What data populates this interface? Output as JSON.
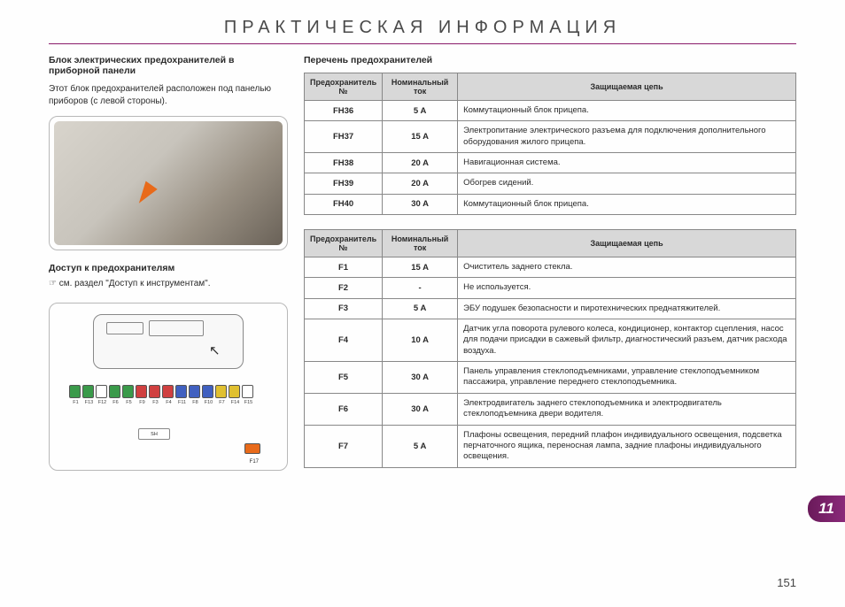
{
  "page_title": "ПРАКТИЧЕСКАЯ ИНФОРМАЦИЯ",
  "left": {
    "heading": "Блок электрических предохранителей в приборной панели",
    "body": "Этот блок предохранителей расположен под панелью приборов (с левой стороны).",
    "access_heading": "Доступ к предохранителям",
    "access_ref": "☞  см. раздел \"Доступ к инструментам\".",
    "fuse_labels": [
      "F1",
      "F13",
      "F12",
      "F6",
      "F5",
      "F9",
      "F3",
      "F4",
      "F11",
      "F8",
      "F10",
      "F7",
      "F14",
      "F15"
    ],
    "fuse_colors": [
      "#3a9a4a",
      "#3a9a4a",
      "#ffffff",
      "#3a9a4a",
      "#3a9a4a",
      "#d04040",
      "#d04040",
      "#d04040",
      "#4060c0",
      "#4060c0",
      "#4060c0",
      "#e0c030",
      "#e0c030",
      "#ffffff"
    ],
    "sh": "SH",
    "f17": "F17"
  },
  "right": {
    "table_title": "Перечень предохранителей",
    "headers": {
      "c1": "Предохранитель №",
      "c2": "Номинальный ток",
      "c3": "Защищаемая цепь"
    },
    "table1": [
      {
        "num": "FH36",
        "amp": "5 A",
        "desc": "Коммутационный блок прицепа."
      },
      {
        "num": "FH37",
        "amp": "15 A",
        "desc": "Электропитание электрического разъема для подключения дополнительного оборудования жилого прицепа."
      },
      {
        "num": "FH38",
        "amp": "20 A",
        "desc": "Навигационная система."
      },
      {
        "num": "FH39",
        "amp": "20 A",
        "desc": "Обогрев сидений."
      },
      {
        "num": "FH40",
        "amp": "30 A",
        "desc": "Коммутационный блок прицепа."
      }
    ],
    "table2": [
      {
        "num": "F1",
        "amp": "15 A",
        "desc": "Очиститель заднего стекла."
      },
      {
        "num": "F2",
        "amp": "-",
        "desc": "Не используется."
      },
      {
        "num": "F3",
        "amp": "5 A",
        "desc": "ЭБУ подушек безопасности и пиротехнических преднатяжителей."
      },
      {
        "num": "F4",
        "amp": "10 A",
        "desc": "Датчик угла поворота рулевого колеса, кондиционер, контактор сцепления, насос для подачи присадки в сажевый фильтр, диагностический разъем, датчик расхода воздуха."
      },
      {
        "num": "F5",
        "amp": "30 A",
        "desc": "Панель управления стеклоподъемниками, управление стеклоподъемником пассажира, управление переднего стеклоподъемника."
      },
      {
        "num": "F6",
        "amp": "30 A",
        "desc": "Электродвигатель заднего стеклоподъемника и электродвигатель стеклоподъемника двери водителя."
      },
      {
        "num": "F7",
        "amp": "5 A",
        "desc": "Плафоны освещения, передний плафон индивидуального освещения, подсветка перчаточного ящика, переносная лампа, задние плафоны индивидуального освещения."
      }
    ]
  },
  "section_number": "11",
  "page_number": "151"
}
